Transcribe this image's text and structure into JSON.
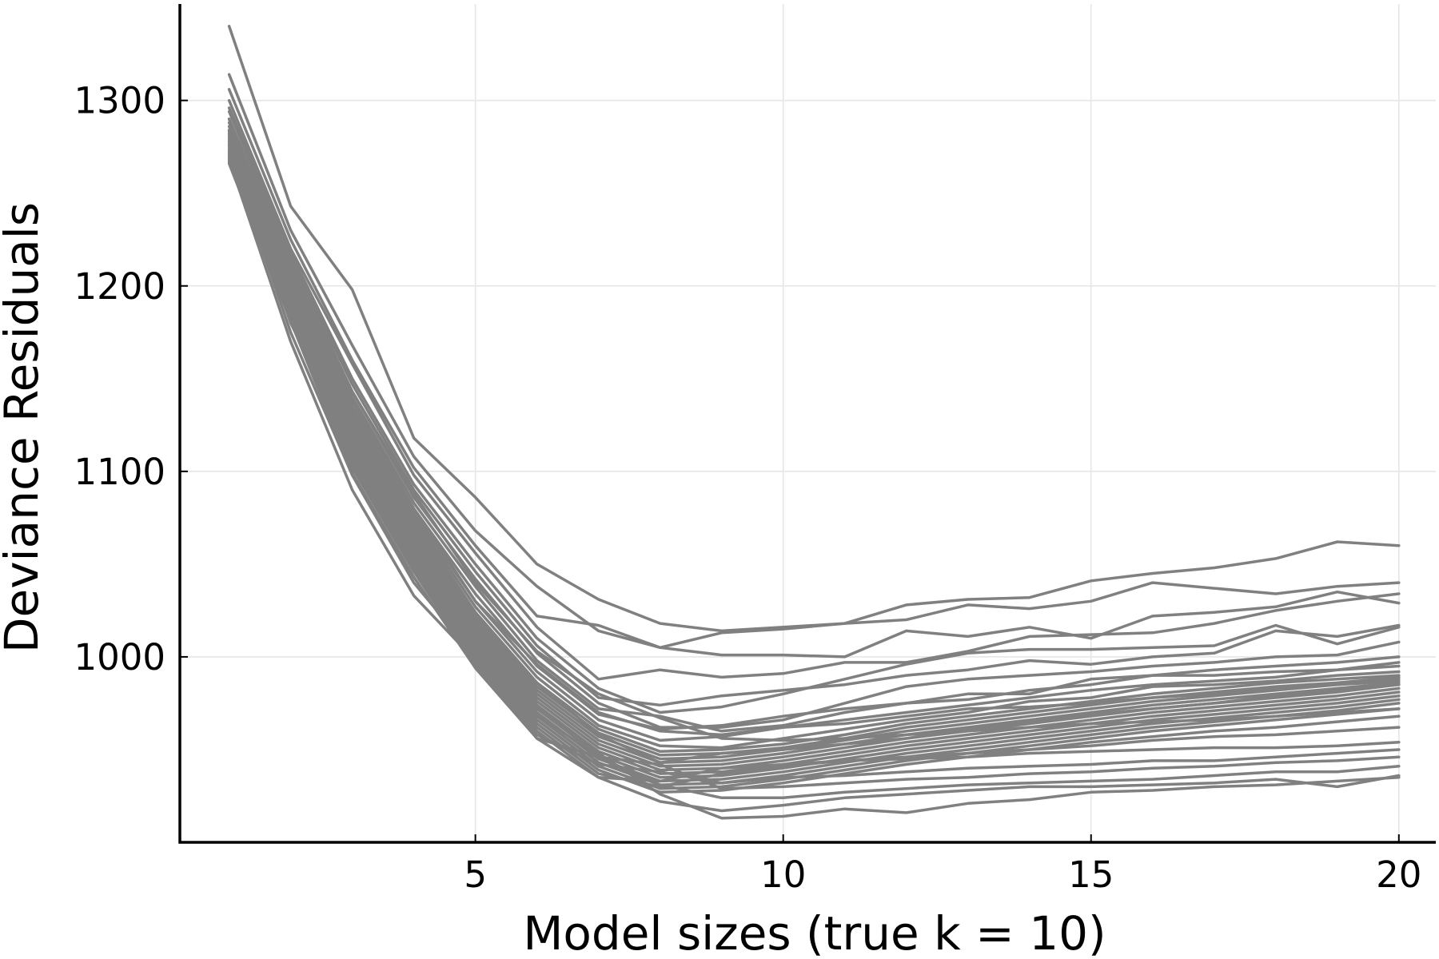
{
  "chart_data": {
    "type": "line",
    "title": "",
    "xlabel": "Model sizes (true k = 10)",
    "ylabel": "Deviance Residuals",
    "xlim": [
      0.2,
      20.6
    ],
    "ylim": [
      900,
      1352
    ],
    "xticks": [
      5,
      10,
      15,
      20
    ],
    "xtick_labels": [
      "5",
      "10",
      "15",
      "20"
    ],
    "yticks": [
      1000,
      1100,
      1200,
      1300
    ],
    "ytick_labels": [
      "1000",
      "1100",
      "1200",
      "1300"
    ],
    "grid": true,
    "legend": "none",
    "line_color": "#808080",
    "x": [
      1,
      2,
      3,
      4,
      5,
      6,
      7,
      8,
      9,
      10,
      11,
      12,
      13,
      14,
      15,
      16,
      17,
      18,
      19,
      20
    ],
    "series": [
      {
        "values": [
          1340,
          1243,
          1198,
          1118,
          1086,
          1050,
          1031,
          1018,
          1014,
          1016,
          1018,
          1028,
          1031,
          1032,
          1041,
          1045,
          1048,
          1053,
          1062,
          1060
        ]
      },
      {
        "values": [
          1314,
          1230,
          1168,
          1108,
          1068,
          1038,
          1014,
          1005,
          1013,
          1015,
          1018,
          1020,
          1028,
          1026,
          1030,
          1040,
          1037,
          1034,
          1038,
          1040
        ]
      },
      {
        "values": [
          1306,
          1225,
          1160,
          1102,
          1060,
          1022,
          1017,
          1005,
          1001,
          1001,
          1000,
          1014,
          1011,
          1016,
          1010,
          1022,
          1024,
          1027,
          1035,
          1029
        ]
      },
      {
        "values": [
          1300,
          1220,
          1158,
          1098,
          1056,
          1016,
          988,
          993,
          989,
          991,
          997,
          997,
          1003,
          1011,
          1012,
          1013,
          1018,
          1025,
          1030,
          1034
        ]
      },
      {
        "values": [
          1296,
          1218,
          1150,
          1093,
          1050,
          1010,
          983,
          970,
          973,
          980,
          988,
          996,
          1002,
          1004,
          1004,
          1005,
          1006,
          1017,
          1007,
          1016
        ]
      },
      {
        "values": [
          1294,
          1215,
          1147,
          1090,
          1046,
          1006,
          978,
          974,
          979,
          982,
          985,
          990,
          993,
          998,
          996,
          1000,
          1002,
          1014,
          1011,
          1017
        ]
      },
      {
        "values": [
          1290,
          1212,
          1143,
          1086,
          1042,
          1002,
          975,
          962,
          962,
          966,
          975,
          984,
          988,
          990,
          992,
          995,
          997,
          1000,
          1001,
          1008
        ]
      },
      {
        "values": [
          1288,
          1210,
          1140,
          1083,
          1038,
          998,
          972,
          968,
          960,
          963,
          970,
          975,
          977,
          982,
          985,
          990,
          993,
          995,
          997,
          1000
        ]
      },
      {
        "values": [
          1286,
          1208,
          1138,
          1080,
          1034,
          995,
          969,
          961,
          963,
          968,
          972,
          975,
          980,
          980,
          988,
          990,
          990,
          992,
          993,
          997
        ]
      },
      {
        "values": [
          1284,
          1206,
          1135,
          1078,
          1030,
          992,
          966,
          955,
          957,
          962,
          966,
          970,
          974,
          978,
          982,
          985,
          987,
          989,
          993,
          995
        ]
      },
      {
        "values": [
          1282,
          1204,
          1132,
          1076,
          1027,
          989,
          963,
          952,
          951,
          956,
          961,
          966,
          970,
          976,
          978,
          984,
          985,
          987,
          990,
          992
        ]
      },
      {
        "values": [
          1281,
          1202,
          1130,
          1074,
          1024,
          986,
          961,
          949,
          950,
          953,
          958,
          964,
          968,
          972,
          976,
          980,
          983,
          986,
          988,
          990
        ]
      },
      {
        "values": [
          1280,
          1200,
          1128,
          1072,
          1022,
          984,
          959,
          947,
          948,
          951,
          956,
          962,
          966,
          970,
          974,
          978,
          981,
          984,
          986,
          989
        ]
      },
      {
        "values": [
          1279,
          1199,
          1126,
          1070,
          1020,
          982,
          957,
          945,
          946,
          950,
          955,
          960,
          964,
          968,
          972,
          976,
          979,
          982,
          985,
          987
        ]
      },
      {
        "values": [
          1278,
          1198,
          1124,
          1068,
          1018,
          980,
          955,
          943,
          944,
          948,
          953,
          958,
          962,
          966,
          970,
          974,
          977,
          980,
          983,
          986
        ]
      },
      {
        "values": [
          1277,
          1197,
          1122,
          1066,
          1016,
          978,
          953,
          941,
          942,
          946,
          951,
          956,
          960,
          964,
          968,
          972,
          975,
          978,
          981,
          985
        ]
      },
      {
        "values": [
          1276,
          1196,
          1120,
          1064,
          1014,
          976,
          951,
          939,
          940,
          944,
          949,
          954,
          958,
          962,
          966,
          970,
          973,
          976,
          979,
          983
        ]
      },
      {
        "values": [
          1275,
          1195,
          1118,
          1062,
          1012,
          974,
          949,
          937,
          938,
          942,
          947,
          952,
          956,
          960,
          964,
          968,
          971,
          974,
          977,
          981
        ]
      },
      {
        "values": [
          1274,
          1194,
          1116,
          1060,
          1010,
          972,
          947,
          935,
          936,
          940,
          945,
          950,
          954,
          958,
          962,
          966,
          969,
          972,
          975,
          979
        ]
      },
      {
        "values": [
          1273,
          1193,
          1114,
          1058,
          1008,
          970,
          945,
          933,
          934,
          938,
          943,
          948,
          952,
          956,
          960,
          964,
          967,
          970,
          973,
          977
        ]
      },
      {
        "values": [
          1272,
          1192,
          1112,
          1056,
          1006,
          968,
          943,
          931,
          932,
          936,
          941,
          946,
          950,
          954,
          958,
          962,
          965,
          968,
          971,
          975
        ]
      },
      {
        "values": [
          1271,
          1191,
          1110,
          1054,
          1004,
          966,
          941,
          929,
          930,
          934,
          939,
          944,
          948,
          952,
          956,
          960,
          963,
          966,
          969,
          972
        ]
      },
      {
        "values": [
          1270,
          1190,
          1108,
          1052,
          1002,
          964,
          939,
          927,
          928,
          932,
          937,
          942,
          946,
          950,
          954,
          957,
          960,
          962,
          965,
          968
        ]
      },
      {
        "values": [
          1269,
          1188,
          1106,
          1050,
          1000,
          962,
          937,
          930,
          937,
          941,
          944,
          946,
          948,
          950,
          952,
          955,
          957,
          958,
          960,
          962
        ]
      },
      {
        "values": [
          1268,
          1186,
          1104,
          1048,
          998,
          960,
          935,
          933,
          940,
          942,
          944,
          945,
          946,
          948,
          949,
          950,
          951,
          951,
          952,
          954
        ]
      },
      {
        "values": [
          1267,
          1184,
          1102,
          1046,
          996,
          958,
          942,
          938,
          932,
          935,
          936,
          938,
          940,
          941,
          942,
          944,
          944,
          946,
          948,
          950
        ]
      },
      {
        "values": [
          1266,
          1181,
          1099,
          1043,
          994,
          956,
          946,
          942,
          929,
          930,
          932,
          934,
          935,
          937,
          938,
          940,
          941,
          943,
          944,
          946
        ]
      },
      {
        "values": [
          1284,
          1200,
          1124,
          1071,
          1024,
          986,
          958,
          943,
          948,
          950,
          953,
          956,
          961,
          965,
          969,
          972,
          975,
          979,
          982,
          985
        ]
      },
      {
        "values": [
          1290,
          1205,
          1133,
          1080,
          1030,
          996,
          970,
          960,
          958,
          962,
          964,
          968,
          972,
          973,
          975,
          978,
          980,
          983,
          985,
          988
        ]
      },
      {
        "values": [
          1283,
          1213,
          1143,
          1088,
          1040,
          1003,
          980,
          967,
          956,
          955,
          956,
          958,
          960,
          962,
          964,
          965,
          966,
          968,
          970,
          972
        ]
      },
      {
        "values": [
          1272,
          1175,
          1098,
          1040,
          1000,
          969,
          946,
          931,
          924,
          924,
          927,
          929,
          931,
          932,
          933,
          934,
          936,
          938,
          938,
          941
        ]
      },
      {
        "values": [
          1268,
          1170,
          1090,
          1033,
          998,
          956,
          935,
          922,
          917,
          920,
          924,
          926,
          928,
          930,
          930,
          931,
          932,
          934,
          930,
          936
        ]
      },
      {
        "values": [
          1276,
          1180,
          1112,
          1055,
          1006,
          973,
          948,
          926,
          913,
          914,
          918,
          916,
          921,
          923,
          927,
          928,
          930,
          931,
          933,
          935
        ]
      }
    ]
  }
}
